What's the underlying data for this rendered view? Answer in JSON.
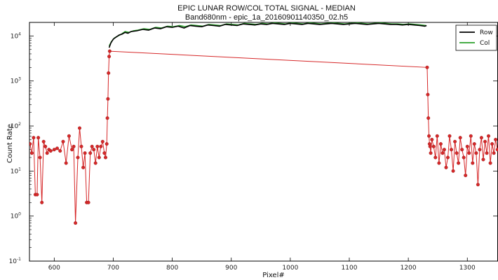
{
  "chart_data": {
    "type": "line",
    "title": "EPIC LUNAR ROW/COL TOTAL SIGNAL - MEDIAN",
    "subtitle": "Band680nm - epic_1a_20160901140350_02.h5",
    "xlabel": "Pixel#",
    "ylabel": "Count Rate",
    "xlim": [
      558,
      1352
    ],
    "ylim": [
      0.1,
      20000
    ],
    "yscale": "log",
    "x_ticks": [
      600,
      700,
      800,
      900,
      1000,
      1100,
      1200,
      1300
    ],
    "y_ticks": [
      {
        "value": 0.1,
        "base": "10",
        "exp": "-1"
      },
      {
        "value": 1,
        "base": "10",
        "exp": "0"
      },
      {
        "value": 10,
        "base": "10",
        "exp": "1"
      },
      {
        "value": 100,
        "base": "10",
        "exp": "2"
      },
      {
        "value": 1000,
        "base": "10",
        "exp": "3"
      },
      {
        "value": 10000,
        "base": "10",
        "exp": "4"
      }
    ],
    "grid": false,
    "legend_position": "top-right",
    "series": [
      {
        "name": "Row",
        "color": "#000000",
        "x": [
          693,
          696,
          700,
          705,
          710,
          715,
          720,
          725,
          730,
          740,
          750,
          760,
          770,
          780,
          790,
          800,
          810,
          820,
          830,
          840,
          850,
          860,
          870,
          880,
          890,
          900,
          910,
          920,
          930,
          940,
          950,
          960,
          970,
          980,
          990,
          1000,
          1010,
          1020,
          1030,
          1040,
          1050,
          1060,
          1070,
          1080,
          1090,
          1100,
          1110,
          1120,
          1130,
          1140,
          1150,
          1160,
          1170,
          1180,
          1190,
          1200,
          1210,
          1220,
          1228,
          1231
        ],
        "y": [
          5500,
          7000,
          8500,
          9500,
          10500,
          11000,
          12000,
          11500,
          12500,
          13000,
          14000,
          13500,
          15000,
          14500,
          16000,
          15500,
          16500,
          15000,
          17000,
          16500,
          16000,
          17500,
          17000,
          16500,
          18000,
          17500,
          17000,
          18500,
          18000,
          17500,
          18500,
          18000,
          19000,
          18500,
          18000,
          19000,
          18500,
          18000,
          19000,
          18500,
          18000,
          18500,
          19000,
          18500,
          18000,
          18500,
          19000,
          18500,
          18000,
          18500,
          19000,
          18500,
          18000,
          18000,
          17500,
          18000,
          17500,
          17000,
          16500,
          17000
        ]
      },
      {
        "name": "Col",
        "color": "#2ca02c",
        "x": [
          693,
          697,
          702,
          708,
          714,
          720,
          727,
          734,
          742,
          752,
          762,
          772,
          782,
          792,
          802,
          812,
          822,
          832,
          842,
          852,
          862,
          872,
          882,
          892,
          902,
          912,
          922,
          932,
          942,
          952,
          962,
          972,
          982,
          992,
          1002,
          1012,
          1022,
          1032,
          1042,
          1052,
          1062,
          1072,
          1082,
          1092,
          1102,
          1112,
          1122,
          1132,
          1142,
          1152,
          1162,
          1172,
          1182,
          1192,
          1202,
          1212,
          1222,
          1230
        ],
        "y": [
          6000,
          7500,
          9000,
          10000,
          11000,
          12500,
          12000,
          13000,
          13500,
          14500,
          14000,
          15500,
          15000,
          16500,
          16000,
          17000,
          16000,
          17500,
          17000,
          16500,
          18000,
          17500,
          17000,
          18500,
          18000,
          17500,
          19000,
          18500,
          18000,
          19000,
          18500,
          19500,
          19000,
          18500,
          19500,
          19000,
          18500,
          19500,
          19000,
          18500,
          19000,
          19500,
          19000,
          18500,
          19000,
          19500,
          19000,
          18500,
          19000,
          19500,
          19000,
          18500,
          18500,
          18000,
          18500,
          18000,
          17500,
          17000
        ]
      },
      {
        "name": "",
        "color": "#d62728",
        "x": [
          559,
          562,
          565,
          568,
          571,
          573,
          576,
          579,
          582,
          585,
          588,
          591,
          594,
          600,
          605,
          610,
          615,
          620,
          625,
          630,
          633,
          636,
          640,
          643,
          646,
          649,
          652,
          655,
          658,
          661,
          664,
          667,
          670,
          673,
          676,
          679,
          682,
          685,
          687,
          689,
          690,
          691,
          692,
          693,
          694,
          1232,
          1233,
          1234,
          1235,
          1236,
          1237,
          1238,
          1240,
          1243,
          1246,
          1249,
          1252,
          1255,
          1258,
          1261,
          1264,
          1267,
          1270,
          1273,
          1276,
          1279,
          1282,
          1285,
          1288,
          1291,
          1294,
          1297,
          1300,
          1303,
          1306,
          1309,
          1312,
          1315,
          1318,
          1321,
          1324,
          1327,
          1330,
          1333,
          1336,
          1339,
          1342,
          1345,
          1348,
          1351
        ],
        "y": [
          40,
          25,
          55,
          3,
          3,
          55,
          20,
          2,
          45,
          35,
          25,
          30,
          28,
          30,
          32,
          28,
          45,
          15,
          60,
          30,
          35,
          0.7,
          20,
          90,
          35,
          12,
          25,
          2,
          2,
          25,
          35,
          30,
          15,
          35,
          20,
          35,
          45,
          25,
          20,
          40,
          150,
          400,
          1500,
          3500,
          4600,
          2000,
          500,
          150,
          60,
          40,
          35,
          25,
          50,
          35,
          20,
          60,
          15,
          40,
          25,
          30,
          12,
          20,
          60,
          30,
          10,
          45,
          25,
          15,
          55,
          30,
          20,
          8,
          35,
          25,
          60,
          15,
          40,
          25,
          5,
          30,
          55,
          18,
          45,
          25,
          60,
          15,
          40,
          25,
          50,
          30
        ]
      }
    ]
  }
}
